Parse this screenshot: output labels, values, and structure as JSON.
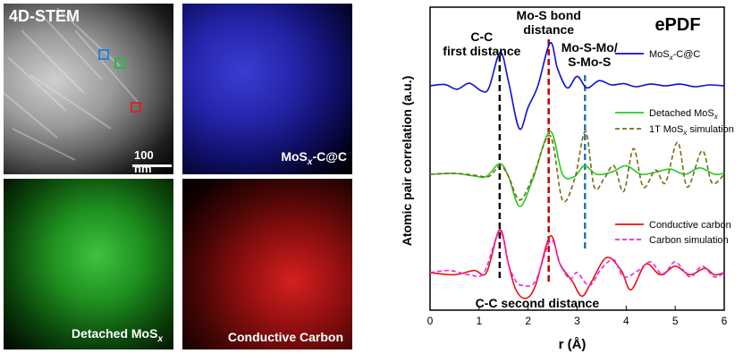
{
  "panels": {
    "stem": {
      "label": "4D-STEM",
      "scale_bar": "100 nm"
    },
    "mosx": {
      "label_main": "MoS",
      "label_sub": "x",
      "label_tail": "-C@C"
    },
    "detached": {
      "label_main": "Detached MoS",
      "label_sub": "x"
    },
    "conductive": {
      "label": "Conductive Carbon"
    }
  },
  "roi_colors": {
    "blue": "#2e7fd6",
    "green": "#1fbf3f",
    "red": "#e02020"
  },
  "chart_data": {
    "type": "line",
    "title": "ePDF",
    "xlabel": "r (Å)",
    "ylabel": "Atomic pair correlation (a.u.)",
    "xlim": [
      0,
      6
    ],
    "xticks": [
      "0",
      "1",
      "2",
      "3",
      "4",
      "5",
      "6"
    ],
    "y_axis_ticks_shown": false,
    "annotations": [
      {
        "lines": [
          "C-C",
          "first distance"
        ],
        "r": 1.42,
        "line_color": "#000000"
      },
      {
        "lines": [
          "Mo-S bond",
          "distance"
        ],
        "r": 2.42,
        "line_color": "#c00000"
      },
      {
        "lines": [
          "Mo-S-Mo/",
          "S-Mo-S"
        ],
        "r": 3.16,
        "line_color": "#1f77b4"
      },
      {
        "lines": [
          "C-C second distance"
        ],
        "r": 2.46
      }
    ],
    "series": [
      {
        "name": "MoSx-C@C",
        "legend_main": "MoS",
        "legend_sub": "x",
        "legend_tail": "-C@C",
        "color": "#1010d0",
        "dash": "solid",
        "group": "top",
        "points": [
          [
            0,
            0.0
          ],
          [
            0.3,
            0.03
          ],
          [
            0.55,
            -0.08
          ],
          [
            0.8,
            0.06
          ],
          [
            1.05,
            -0.12
          ],
          [
            1.2,
            -0.05
          ],
          [
            1.43,
            0.78
          ],
          [
            1.6,
            0.1
          ],
          [
            1.82,
            -1.0
          ],
          [
            2.0,
            -0.5
          ],
          [
            2.2,
            0.0
          ],
          [
            2.45,
            1.0
          ],
          [
            2.6,
            0.4
          ],
          [
            2.8,
            -0.05
          ],
          [
            3.0,
            0.22
          ],
          [
            3.2,
            -0.05
          ],
          [
            3.45,
            0.12
          ],
          [
            3.7,
            0.02
          ],
          [
            3.95,
            0.05
          ],
          [
            4.2,
            -0.02
          ],
          [
            4.5,
            0.04
          ],
          [
            4.8,
            0.0
          ],
          [
            5.1,
            0.04
          ],
          [
            5.4,
            -0.02
          ],
          [
            5.7,
            0.02
          ],
          [
            6.0,
            0.0
          ]
        ]
      },
      {
        "name": "Detached MoSx",
        "legend_main": "Detached MoS",
        "legend_sub": "x",
        "legend_tail": "",
        "color": "#22cc22",
        "dash": "solid",
        "group": "middle",
        "points": [
          [
            0,
            0.0
          ],
          [
            0.5,
            0.02
          ],
          [
            0.9,
            -0.04
          ],
          [
            1.15,
            -0.05
          ],
          [
            1.42,
            0.25
          ],
          [
            1.6,
            -0.05
          ],
          [
            1.83,
            -0.75
          ],
          [
            2.1,
            -0.1
          ],
          [
            2.45,
            1.0
          ],
          [
            2.7,
            0.0
          ],
          [
            2.95,
            -0.05
          ],
          [
            3.15,
            0.2
          ],
          [
            3.4,
            0.0
          ],
          [
            3.7,
            0.05
          ],
          [
            4.0,
            0.2
          ],
          [
            4.3,
            0.0
          ],
          [
            4.6,
            0.05
          ],
          [
            4.9,
            0.12
          ],
          [
            5.2,
            0.0
          ],
          [
            5.5,
            0.15
          ],
          [
            5.8,
            0.0
          ],
          [
            6.0,
            0.03
          ]
        ]
      },
      {
        "name": "1T MoSx simulation",
        "legend_main": "1T MoS",
        "legend_sub": "x",
        "legend_tail": " simulation",
        "color": "#7a6a10",
        "dash": "dashed",
        "group": "middle",
        "points": [
          [
            0,
            0.0
          ],
          [
            0.5,
            0.02
          ],
          [
            0.9,
            -0.02
          ],
          [
            1.2,
            -0.05
          ],
          [
            1.43,
            0.2
          ],
          [
            1.6,
            -0.05
          ],
          [
            1.83,
            -0.6
          ],
          [
            2.1,
            -0.05
          ],
          [
            2.45,
            0.9
          ],
          [
            2.7,
            -0.6
          ],
          [
            2.95,
            -0.1
          ],
          [
            3.17,
            1.0
          ],
          [
            3.35,
            -0.3
          ],
          [
            3.55,
            -0.1
          ],
          [
            3.75,
            0.2
          ],
          [
            3.95,
            -0.4
          ],
          [
            4.15,
            0.6
          ],
          [
            4.35,
            -0.3
          ],
          [
            4.6,
            0.1
          ],
          [
            4.8,
            -0.2
          ],
          [
            5.05,
            0.75
          ],
          [
            5.25,
            -0.3
          ],
          [
            5.55,
            0.55
          ],
          [
            5.75,
            -0.2
          ],
          [
            6.0,
            0.0
          ]
        ]
      },
      {
        "name": "Conductive carbon",
        "legend_main": "Conductive carbon",
        "legend_sub": "",
        "legend_tail": "",
        "color": "#ee1111",
        "dash": "solid",
        "group": "bottom",
        "points": [
          [
            0,
            0.0
          ],
          [
            0.5,
            -0.05
          ],
          [
            0.9,
            0.05
          ],
          [
            1.15,
            0.0
          ],
          [
            1.42,
            1.0
          ],
          [
            1.6,
            0.2
          ],
          [
            1.75,
            -0.4
          ],
          [
            1.95,
            -0.6
          ],
          [
            2.15,
            -0.3
          ],
          [
            2.45,
            0.85
          ],
          [
            2.65,
            0.2
          ],
          [
            2.9,
            -0.2
          ],
          [
            3.1,
            -0.55
          ],
          [
            3.3,
            -0.2
          ],
          [
            3.6,
            0.35
          ],
          [
            3.9,
            0.05
          ],
          [
            4.1,
            -0.4
          ],
          [
            4.4,
            0.2
          ],
          [
            4.7,
            -0.05
          ],
          [
            5.0,
            0.15
          ],
          [
            5.3,
            -0.05
          ],
          [
            5.6,
            0.1
          ],
          [
            5.8,
            -0.05
          ],
          [
            6.0,
            0.0
          ]
        ]
      },
      {
        "name": "Carbon simulation",
        "legend_main": "Carbon simulation",
        "legend_sub": "",
        "legend_tail": "",
        "color": "#ee22ee",
        "dash": "dashed",
        "group": "bottom",
        "points": [
          [
            0,
            0.0
          ],
          [
            0.4,
            0.05
          ],
          [
            0.8,
            -0.05
          ],
          [
            1.1,
            0.0
          ],
          [
            1.42,
            0.95
          ],
          [
            1.6,
            0.2
          ],
          [
            1.75,
            -0.2
          ],
          [
            1.9,
            -0.3
          ],
          [
            2.15,
            -0.2
          ],
          [
            2.46,
            0.75
          ],
          [
            2.65,
            0.2
          ],
          [
            2.85,
            -0.15
          ],
          [
            3.0,
            0.0
          ],
          [
            3.25,
            -0.3
          ],
          [
            3.5,
            0.1
          ],
          [
            3.75,
            0.3
          ],
          [
            3.95,
            -0.1
          ],
          [
            4.25,
            0.05
          ],
          [
            4.5,
            0.25
          ],
          [
            4.75,
            -0.05
          ],
          [
            5.0,
            0.25
          ],
          [
            5.3,
            -0.1
          ],
          [
            5.55,
            0.15
          ],
          [
            5.8,
            -0.1
          ],
          [
            6.0,
            0.0
          ]
        ]
      }
    ]
  }
}
